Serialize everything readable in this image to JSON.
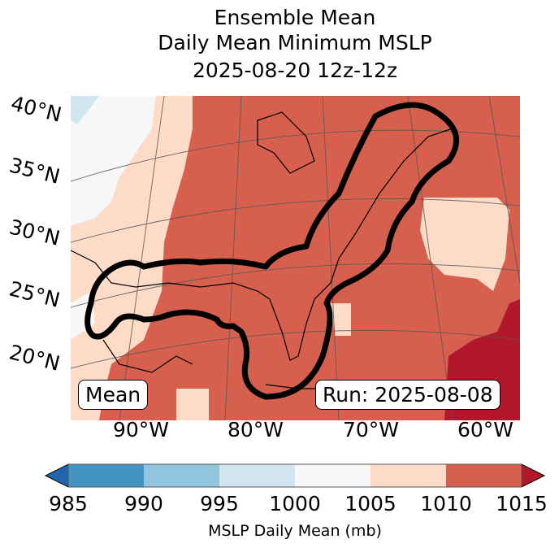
{
  "title_lines": [
    "Ensemble Mean",
    "Daily Mean Minimum MSLP",
    "2025-08-20 12z-12z"
  ],
  "lat_labels": [
    "40°N",
    "35°N",
    "30°N",
    "25°N",
    "20°N"
  ],
  "lon_labels": [
    "90°W",
    "80°W",
    "70°W",
    "60°W"
  ],
  "mean_label": "Mean",
  "run_label": "Run: 2025-08-08",
  "colorbar": {
    "label": "MSLP Daily Mean (mb)",
    "ticks": [
      "985",
      "990",
      "995",
      "1000",
      "1005",
      "1010",
      "1015"
    ],
    "colors": [
      "#4393c3",
      "#92c5de",
      "#d1e5f0",
      "#f7f7f7",
      "#fddbc7",
      "#d6604d"
    ],
    "under_color": "#2166ac",
    "over_color": "#b2182b"
  }
}
